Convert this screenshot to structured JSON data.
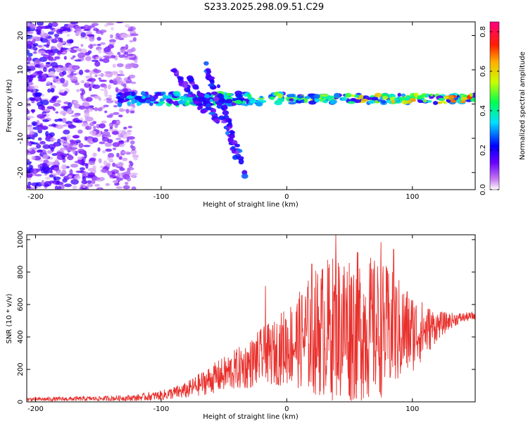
{
  "title": "S233.2025.298.09.51.C29",
  "chart_data": [
    {
      "type": "heatmap",
      "name": "spectrogram",
      "xlabel": "Height of straight line (km)",
      "ylabel": "Frequency (Hz)",
      "xlim": [
        -207,
        150
      ],
      "ylim": [
        -25,
        24
      ],
      "xticks": [
        -200,
        -100,
        0,
        100
      ],
      "yticks": [
        -20,
        -10,
        0,
        10,
        20
      ],
      "colorbar": {
        "label": "Normalized spectral amplitude",
        "range": [
          0,
          0.85
        ],
        "ticks": [
          "0.0",
          "0.2",
          "0.4",
          "0.6",
          "0.8"
        ]
      },
      "features": [
        {
          "description_label": "noise",
          "x": [
            -207,
            -120
          ],
          "y": [
            -25,
            24
          ]
        },
        {
          "description_label": "signal_band",
          "x_start": -135,
          "x_end": 150,
          "y_center": 1.5
        }
      ],
      "streaks": [
        {
          "x": [
            -90,
            -65
          ],
          "y": [
            10,
            -3
          ]
        },
        {
          "x": [
            -78,
            -55
          ],
          "y": [
            8,
            -5
          ]
        },
        {
          "x": [
            -65,
            -40
          ],
          "y": [
            12,
            -16
          ]
        },
        {
          "x": [
            -55,
            -33
          ],
          "y": [
            5,
            -21
          ]
        }
      ]
    },
    {
      "type": "line",
      "name": "snr",
      "xlabel": "Height of straight line (km)",
      "ylabel": "SNR (10 * v/v)",
      "xlim": [
        -207,
        150
      ],
      "ylim": [
        0,
        1030
      ],
      "xticks": [
        -200,
        -100,
        0,
        100
      ],
      "yticks": [
        0,
        200,
        400,
        600,
        800,
        1000
      ],
      "color": "#e8302c",
      "envelope": {
        "x": [
          -207,
          -150,
          -120,
          -100,
          -80,
          -60,
          -40,
          -30,
          -20,
          -10,
          0,
          10,
          20,
          30,
          40,
          50,
          60,
          70,
          80,
          90,
          100,
          110,
          120,
          130,
          140,
          150
        ],
        "base": [
          15,
          20,
          25,
          40,
          70,
          140,
          200,
          230,
          280,
          300,
          350,
          380,
          420,
          450,
          460,
          470,
          460,
          450,
          440,
          430,
          430,
          440,
          470,
          500,
          520,
          530
        ],
        "amp": [
          12,
          15,
          20,
          30,
          50,
          90,
          130,
          150,
          180,
          200,
          250,
          300,
          380,
          430,
          460,
          480,
          460,
          440,
          400,
          330,
          250,
          170,
          90,
          50,
          30,
          25
        ]
      },
      "spikes": [
        {
          "x": -17,
          "y": 715
        },
        {
          "x": 20,
          "y": 850
        },
        {
          "x": 39,
          "y": 1030
        },
        {
          "x": 75,
          "y": 985
        },
        {
          "x": 85,
          "y": 940
        }
      ]
    }
  ]
}
